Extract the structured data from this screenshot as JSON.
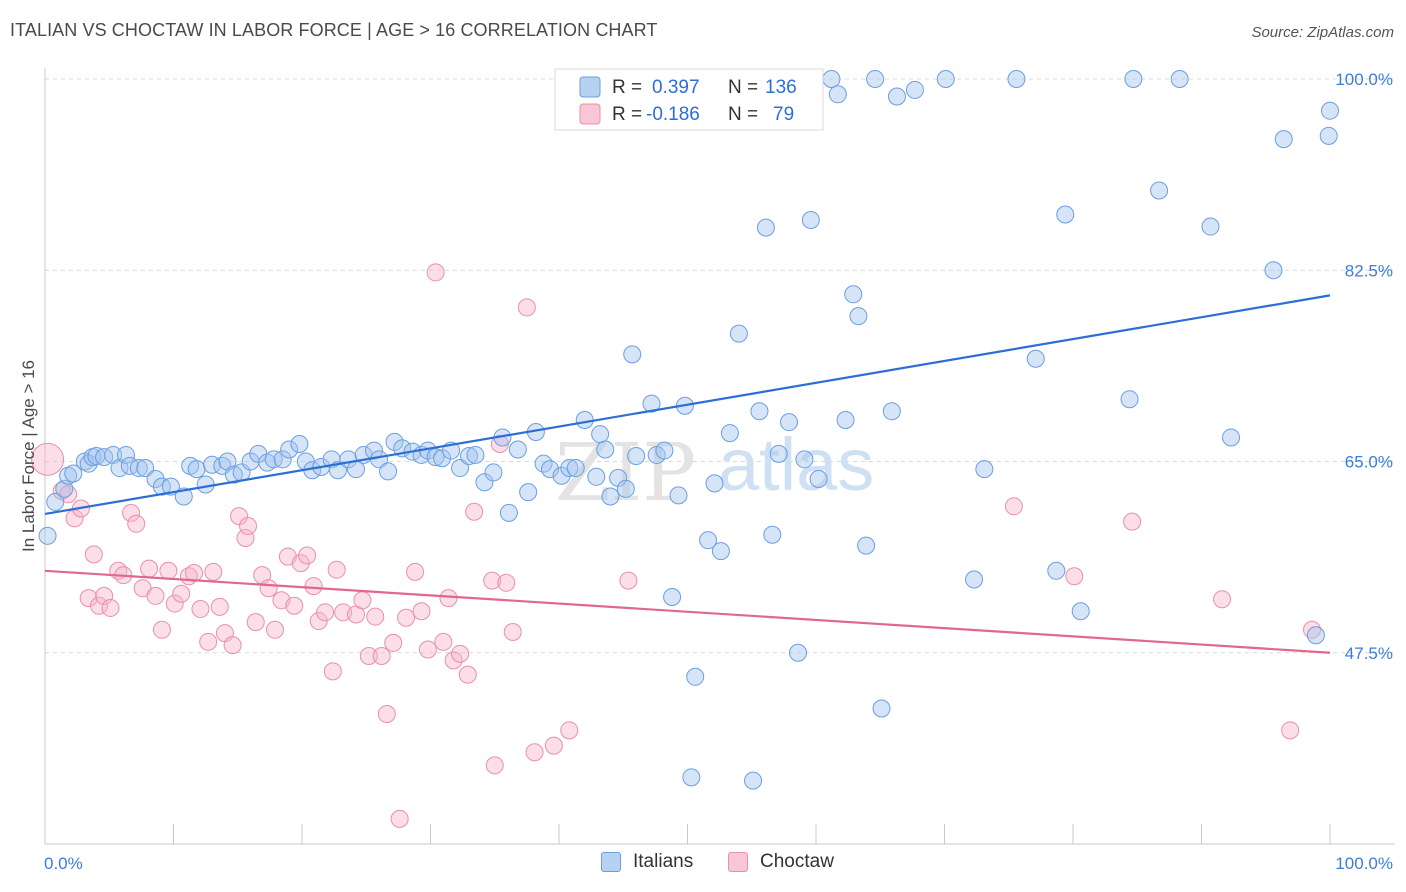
{
  "header": {
    "title": "ITALIAN VS CHOCTAW IN LABOR FORCE | AGE > 16 CORRELATION CHART",
    "source": "Source: ZipAtlas.com"
  },
  "legend": {
    "r_label": "R =",
    "n_label": "N =",
    "rows": [
      {
        "name": "Italians",
        "r": "0.397",
        "n": "136",
        "fill": "#b7d1f2",
        "stroke": "#6a9fe0"
      },
      {
        "name": "Choctaw",
        "r": "-0.186",
        "n": "79",
        "fill": "#f8c6d5",
        "stroke": "#e890ab"
      }
    ]
  },
  "bottom_legend": {
    "items": [
      "Italians",
      "Choctaw"
    ]
  },
  "watermark": {
    "part1": "ZIP",
    "part2": "atlas"
  },
  "colors": {
    "italians_fill": "rgba(163,196,240,0.45)",
    "italians_stroke": "#6a9fe0",
    "italians_line": "#2b6fd6",
    "choctaw_fill": "rgba(246,182,202,0.45)",
    "choctaw_stroke": "#e890ab",
    "choctaw_line": "#e0678e",
    "grid": "#d9d9d9",
    "tick_label": "#3b7dd8"
  },
  "chart_data": {
    "type": "scatter",
    "title": "ITALIAN VS CHOCTAW IN LABOR FORCE | AGE > 16 CORRELATION CHART",
    "xlabel": "",
    "ylabel": "In Labor Force | Age > 16",
    "xlim": [
      0,
      100
    ],
    "ylim": [
      30,
      100
    ],
    "x_tick_labels": [
      "0.0%",
      "100.0%"
    ],
    "y_ticks": [
      47.5,
      65.0,
      82.5,
      100.0
    ],
    "y_tick_labels": [
      "47.5%",
      "65.0%",
      "82.5%",
      "100.0%"
    ],
    "grid": true,
    "legend_position": "top-center",
    "series": [
      {
        "name": "Italians",
        "trend": {
          "x": [
            0,
            100
          ],
          "y": [
            60.2,
            80.2
          ]
        },
        "points": [
          [
            0.2,
            58.2
          ],
          [
            0.8,
            61.3
          ],
          [
            1.5,
            62.5
          ],
          [
            1.8,
            63.7
          ],
          [
            2.2,
            63.9
          ],
          [
            3.1,
            65.0
          ],
          [
            3.4,
            64.8
          ],
          [
            3.7,
            65.4
          ],
          [
            4.0,
            65.5
          ],
          [
            4.6,
            65.4
          ],
          [
            5.3,
            65.6
          ],
          [
            5.8,
            64.4
          ],
          [
            6.3,
            65.6
          ],
          [
            6.6,
            64.6
          ],
          [
            7.3,
            64.4
          ],
          [
            7.8,
            64.4
          ],
          [
            8.6,
            63.4
          ],
          [
            9.1,
            62.7
          ],
          [
            9.8,
            62.7
          ],
          [
            10.8,
            61.8
          ],
          [
            11.3,
            64.6
          ],
          [
            11.8,
            64.3
          ],
          [
            12.5,
            62.9
          ],
          [
            13.0,
            64.7
          ],
          [
            13.8,
            64.6
          ],
          [
            14.2,
            65.0
          ],
          [
            14.7,
            63.8
          ],
          [
            15.3,
            64.0
          ],
          [
            16.0,
            65.0
          ],
          [
            16.6,
            65.7
          ],
          [
            17.3,
            64.9
          ],
          [
            17.8,
            65.2
          ],
          [
            18.5,
            65.2
          ],
          [
            19.0,
            66.1
          ],
          [
            19.8,
            66.6
          ],
          [
            20.3,
            65.0
          ],
          [
            20.8,
            64.2
          ],
          [
            21.5,
            64.5
          ],
          [
            22.3,
            65.2
          ],
          [
            22.8,
            64.2
          ],
          [
            23.6,
            65.2
          ],
          [
            24.2,
            64.3
          ],
          [
            24.8,
            65.6
          ],
          [
            25.6,
            66.0
          ],
          [
            26.0,
            65.2
          ],
          [
            26.7,
            64.1
          ],
          [
            27.2,
            66.8
          ],
          [
            27.8,
            66.2
          ],
          [
            28.6,
            65.9
          ],
          [
            29.3,
            65.6
          ],
          [
            29.8,
            66.0
          ],
          [
            30.4,
            65.4
          ],
          [
            30.9,
            65.3
          ],
          [
            31.6,
            66.0
          ],
          [
            32.3,
            64.4
          ],
          [
            33.0,
            65.5
          ],
          [
            33.5,
            65.6
          ],
          [
            34.2,
            63.1
          ],
          [
            34.9,
            64.0
          ],
          [
            35.6,
            67.2
          ],
          [
            36.1,
            60.3
          ],
          [
            36.8,
            66.1
          ],
          [
            37.6,
            62.2
          ],
          [
            38.2,
            67.7
          ],
          [
            38.8,
            64.8
          ],
          [
            39.3,
            64.3
          ],
          [
            40.2,
            63.7
          ],
          [
            40.8,
            64.4
          ],
          [
            41.3,
            64.4
          ],
          [
            42.0,
            68.8
          ],
          [
            42.9,
            63.6
          ],
          [
            43.2,
            67.5
          ],
          [
            43.6,
            66.1
          ],
          [
            44.0,
            61.8
          ],
          [
            44.6,
            63.5
          ],
          [
            45.2,
            62.5
          ],
          [
            45.7,
            74.8
          ],
          [
            46.0,
            65.5
          ],
          [
            47.2,
            70.3
          ],
          [
            47.6,
            65.6
          ],
          [
            48.2,
            66.0
          ],
          [
            48.8,
            52.6
          ],
          [
            49.3,
            61.9
          ],
          [
            49.8,
            70.1
          ],
          [
            50.3,
            36.1
          ],
          [
            50.6,
            45.3
          ],
          [
            51.6,
            57.8
          ],
          [
            52.1,
            63.0
          ],
          [
            52.6,
            56.8
          ],
          [
            53.3,
            67.6
          ],
          [
            54.0,
            76.7
          ],
          [
            54.6,
            97.8
          ],
          [
            55.1,
            35.8
          ],
          [
            55.6,
            69.6
          ],
          [
            56.1,
            86.4
          ],
          [
            56.6,
            58.3
          ],
          [
            57.1,
            65.7
          ],
          [
            57.9,
            68.6
          ],
          [
            58.6,
            47.5
          ],
          [
            59.1,
            65.2
          ],
          [
            59.6,
            87.1
          ],
          [
            60.2,
            63.4
          ],
          [
            61.2,
            100.0
          ],
          [
            61.7,
            98.6
          ],
          [
            62.3,
            68.8
          ],
          [
            62.9,
            80.3
          ],
          [
            63.3,
            78.3
          ],
          [
            63.9,
            57.3
          ],
          [
            64.6,
            100.0
          ],
          [
            65.1,
            42.4
          ],
          [
            65.9,
            69.6
          ],
          [
            66.3,
            98.4
          ],
          [
            67.7,
            99.0
          ],
          [
            70.1,
            100.0
          ],
          [
            72.3,
            54.2
          ],
          [
            73.1,
            64.3
          ],
          [
            75.6,
            100.0
          ],
          [
            77.1,
            74.4
          ],
          [
            78.7,
            55.0
          ],
          [
            79.4,
            87.6
          ],
          [
            80.6,
            51.3
          ],
          [
            84.4,
            70.7
          ],
          [
            84.7,
            100.0
          ],
          [
            86.7,
            89.8
          ],
          [
            88.3,
            100.0
          ],
          [
            90.7,
            86.5
          ],
          [
            92.3,
            67.2
          ],
          [
            95.6,
            82.5
          ],
          [
            96.4,
            94.5
          ],
          [
            98.9,
            49.1
          ],
          [
            99.9,
            94.8
          ],
          [
            100.0,
            97.1
          ]
        ]
      },
      {
        "name": "Choctaw",
        "trend": {
          "x": [
            0,
            100
          ],
          "y": [
            55.0,
            47.5
          ]
        },
        "points": [
          [
            0.2,
            65.2
          ],
          [
            1.3,
            62.3
          ],
          [
            1.8,
            62.0
          ],
          [
            2.3,
            59.8
          ],
          [
            2.8,
            60.7
          ],
          [
            3.4,
            52.5
          ],
          [
            3.8,
            56.5
          ],
          [
            4.2,
            51.8
          ],
          [
            4.6,
            52.7
          ],
          [
            5.1,
            51.6
          ],
          [
            5.7,
            55.0
          ],
          [
            6.1,
            54.6
          ],
          [
            6.7,
            60.3
          ],
          [
            7.1,
            59.3
          ],
          [
            7.6,
            53.4
          ],
          [
            8.1,
            55.2
          ],
          [
            8.6,
            52.7
          ],
          [
            9.1,
            49.6
          ],
          [
            9.6,
            55.0
          ],
          [
            10.1,
            52.0
          ],
          [
            10.6,
            52.9
          ],
          [
            11.2,
            54.5
          ],
          [
            11.6,
            54.8
          ],
          [
            12.1,
            51.5
          ],
          [
            12.7,
            48.5
          ],
          [
            13.1,
            54.9
          ],
          [
            13.6,
            51.7
          ],
          [
            14.0,
            49.3
          ],
          [
            14.6,
            48.2
          ],
          [
            15.1,
            60.0
          ],
          [
            15.6,
            58.0
          ],
          [
            15.8,
            59.1
          ],
          [
            16.4,
            50.3
          ],
          [
            16.9,
            54.6
          ],
          [
            17.4,
            53.4
          ],
          [
            17.9,
            49.6
          ],
          [
            18.4,
            52.3
          ],
          [
            18.9,
            56.3
          ],
          [
            19.4,
            51.8
          ],
          [
            19.9,
            55.7
          ],
          [
            20.4,
            56.4
          ],
          [
            20.9,
            53.6
          ],
          [
            21.3,
            50.4
          ],
          [
            21.8,
            51.2
          ],
          [
            22.4,
            45.8
          ],
          [
            22.7,
            55.1
          ],
          [
            23.2,
            51.2
          ],
          [
            24.2,
            51.0
          ],
          [
            24.7,
            52.3
          ],
          [
            25.2,
            47.2
          ],
          [
            25.7,
            50.8
          ],
          [
            26.2,
            47.2
          ],
          [
            26.6,
            41.9
          ],
          [
            27.1,
            48.4
          ],
          [
            27.6,
            32.3
          ],
          [
            28.1,
            50.7
          ],
          [
            28.8,
            54.9
          ],
          [
            29.3,
            51.3
          ],
          [
            29.8,
            47.8
          ],
          [
            30.4,
            82.3
          ],
          [
            31.0,
            48.5
          ],
          [
            31.4,
            52.5
          ],
          [
            31.8,
            46.8
          ],
          [
            32.3,
            47.4
          ],
          [
            32.9,
            45.5
          ],
          [
            33.4,
            60.4
          ],
          [
            34.8,
            54.1
          ],
          [
            35.0,
            37.2
          ],
          [
            35.4,
            66.6
          ],
          [
            35.9,
            53.9
          ],
          [
            36.4,
            49.4
          ],
          [
            37.5,
            79.1
          ],
          [
            38.1,
            38.4
          ],
          [
            39.6,
            39.0
          ],
          [
            40.8,
            40.4
          ],
          [
            45.4,
            54.1
          ],
          [
            75.4,
            60.9
          ],
          [
            80.1,
            54.5
          ],
          [
            84.6,
            59.5
          ],
          [
            91.6,
            52.4
          ],
          [
            96.9,
            40.4
          ],
          [
            98.6,
            49.6
          ]
        ]
      }
    ]
  }
}
